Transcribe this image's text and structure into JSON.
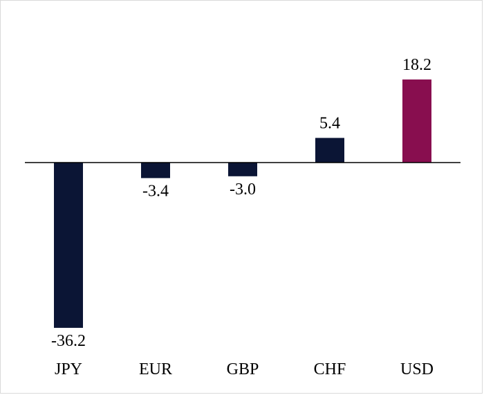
{
  "chart_data": {
    "type": "bar",
    "categories": [
      "JPY",
      "EUR",
      "GBP",
      "CHF",
      "USD"
    ],
    "values": [
      -36.2,
      -3.4,
      -3.0,
      5.4,
      18.2
    ],
    "value_labels": [
      "-36.2",
      "-3.4",
      "-3.0",
      "5.4",
      "18.2"
    ],
    "colors": [
      "#0b1535",
      "#0b1535",
      "#0b1535",
      "#0b1535",
      "#880e4f"
    ],
    "title": "",
    "xlabel": "",
    "ylabel": "",
    "ylim": [
      -36.2,
      18.2
    ],
    "grid": false,
    "legend": "none",
    "axis_color": "#000000"
  }
}
